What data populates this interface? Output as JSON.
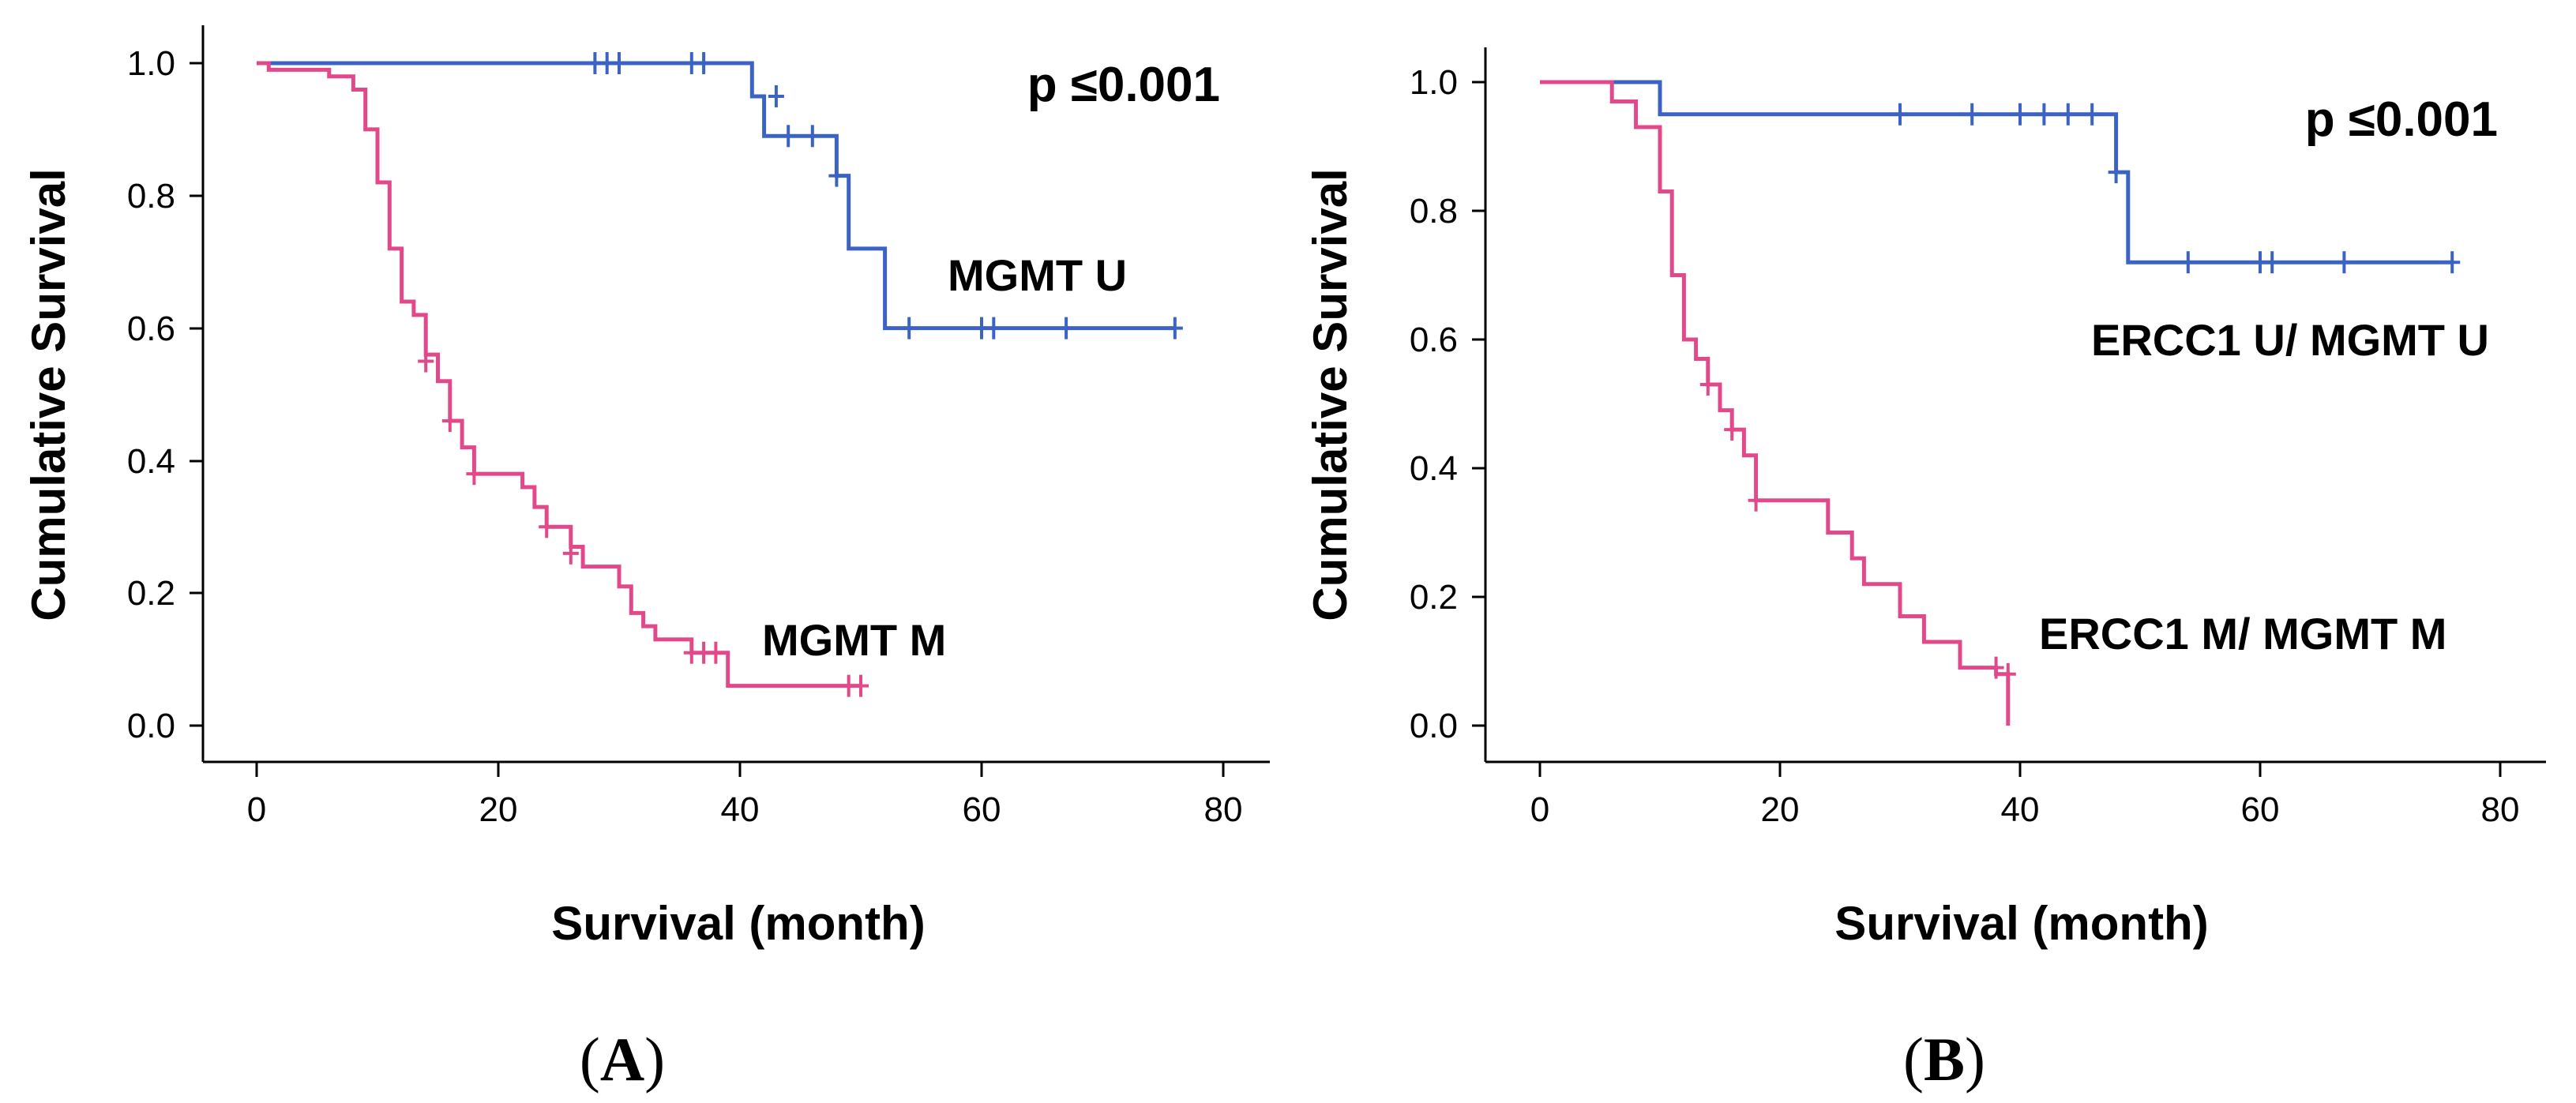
{
  "chart_data": [
    {
      "type": "line",
      "panel_label": "A",
      "xlabel": "Survival (month)",
      "ylabel": "Cumulative Survival",
      "xlim": [
        0,
        80
      ],
      "ylim": [
        0,
        1.0
      ],
      "x_ticks": [
        "0",
        "20",
        "40",
        "60",
        "80"
      ],
      "y_ticks": [
        "0.0",
        "0.2",
        "0.4",
        "0.6",
        "0.8",
        "1.0"
      ],
      "p_value": "p ≤0.001",
      "series": [
        {
          "name": "MGMT U",
          "color": "#3b63c4",
          "steps": [
            [
              0,
              1.0
            ],
            [
              41,
              0.95
            ],
            [
              42,
              0.89
            ],
            [
              48,
              0.83
            ],
            [
              49,
              0.72
            ],
            [
              52,
              0.6
            ],
            [
              76,
              0.6
            ]
          ],
          "censored": [
            [
              28,
              1.0
            ],
            [
              29,
              1.0
            ],
            [
              30,
              1.0
            ],
            [
              36,
              1.0
            ],
            [
              37,
              1.0
            ],
            [
              43,
              0.95
            ],
            [
              44,
              0.89
            ],
            [
              46,
              0.89
            ],
            [
              48,
              0.83
            ],
            [
              54,
              0.6
            ],
            [
              60,
              0.6
            ],
            [
              61,
              0.6
            ],
            [
              67,
              0.6
            ],
            [
              76,
              0.6
            ]
          ]
        },
        {
          "name": "MGMT M",
          "color": "#e2498a",
          "steps": [
            [
              0,
              1.0
            ],
            [
              1,
              0.99
            ],
            [
              6,
              0.98
            ],
            [
              8,
              0.96
            ],
            [
              9,
              0.9
            ],
            [
              10,
              0.82
            ],
            [
              11,
              0.72
            ],
            [
              12,
              0.64
            ],
            [
              13,
              0.62
            ],
            [
              14,
              0.56
            ],
            [
              15,
              0.52
            ],
            [
              16,
              0.46
            ],
            [
              17,
              0.42
            ],
            [
              18,
              0.38
            ],
            [
              22,
              0.36
            ],
            [
              23,
              0.33
            ],
            [
              24,
              0.3
            ],
            [
              26,
              0.27
            ],
            [
              27,
              0.24
            ],
            [
              30,
              0.21
            ],
            [
              31,
              0.17
            ],
            [
              32,
              0.15
            ],
            [
              33,
              0.13
            ],
            [
              36,
              0.11
            ],
            [
              39,
              0.06
            ],
            [
              50,
              0.06
            ]
          ],
          "censored": [
            [
              14,
              0.55
            ],
            [
              16,
              0.46
            ],
            [
              18,
              0.38
            ],
            [
              24,
              0.3
            ],
            [
              26,
              0.26
            ],
            [
              36,
              0.11
            ],
            [
              37,
              0.11
            ],
            [
              38,
              0.11
            ],
            [
              49,
              0.06
            ],
            [
              50,
              0.06
            ]
          ]
        }
      ]
    },
    {
      "type": "line",
      "panel_label": "B",
      "xlabel": "Survival (month)",
      "ylabel": "Cumulative Survival",
      "xlim": [
        0,
        80
      ],
      "ylim": [
        0,
        1.0
      ],
      "x_ticks": [
        "0",
        "20",
        "40",
        "60",
        "80"
      ],
      "y_ticks": [
        "0.0",
        "0.2",
        "0.4",
        "0.6",
        "0.8",
        "1.0"
      ],
      "p_value": "p ≤0.001",
      "series": [
        {
          "name": "ERCC1 U/ MGMT U",
          "color": "#3b63c4",
          "steps": [
            [
              0,
              1.0
            ],
            [
              10,
              0.95
            ],
            [
              48,
              0.86
            ],
            [
              49,
              0.72
            ],
            [
              76,
              0.72
            ]
          ],
          "censored": [
            [
              30,
              0.95
            ],
            [
              36,
              0.95
            ],
            [
              40,
              0.95
            ],
            [
              42,
              0.95
            ],
            [
              44,
              0.95
            ],
            [
              46,
              0.95
            ],
            [
              48,
              0.86
            ],
            [
              54,
              0.72
            ],
            [
              60,
              0.72
            ],
            [
              61,
              0.72
            ],
            [
              67,
              0.72
            ],
            [
              76,
              0.72
            ]
          ]
        },
        {
          "name": "ERCC1 M/ MGMT M",
          "color": "#e2498a",
          "steps": [
            [
              0,
              1.0
            ],
            [
              6,
              0.97
            ],
            [
              8,
              0.93
            ],
            [
              10,
              0.83
            ],
            [
              11,
              0.7
            ],
            [
              12,
              0.6
            ],
            [
              13,
              0.57
            ],
            [
              14,
              0.53
            ],
            [
              15,
              0.49
            ],
            [
              16,
              0.46
            ],
            [
              17,
              0.42
            ],
            [
              18,
              0.35
            ],
            [
              24,
              0.3
            ],
            [
              26,
              0.26
            ],
            [
              27,
              0.22
            ],
            [
              30,
              0.17
            ],
            [
              32,
              0.13
            ],
            [
              35,
              0.09
            ],
            [
              38,
              0.08
            ],
            [
              39,
              0.0
            ]
          ],
          "censored": [
            [
              14,
              0.53
            ],
            [
              16,
              0.46
            ],
            [
              18,
              0.35
            ],
            [
              38,
              0.09
            ],
            [
              39,
              0.08
            ]
          ]
        }
      ]
    }
  ]
}
